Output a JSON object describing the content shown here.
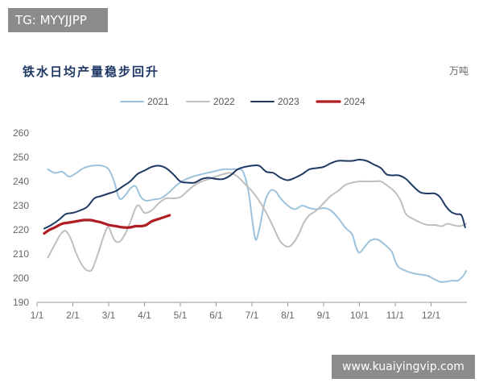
{
  "watermarks": {
    "top": "TG: MYYJJPP",
    "bottom": "www.kuaiyingvip.com"
  },
  "chart_data": {
    "type": "line",
    "title": "铁水日均产量稳步回升",
    "unit": "万吨",
    "ylim": [
      190,
      260
    ],
    "yticks": [
      190,
      200,
      210,
      220,
      230,
      240,
      250,
      260
    ],
    "xlim": [
      0,
      12
    ],
    "xticks": [
      {
        "label": "1/1",
        "x": 0
      },
      {
        "label": "2/1",
        "x": 1
      },
      {
        "label": "3/1",
        "x": 2
      },
      {
        "label": "4/1",
        "x": 3
      },
      {
        "label": "5/1",
        "x": 4
      },
      {
        "label": "6/1",
        "x": 5
      },
      {
        "label": "7/1",
        "x": 6
      },
      {
        "label": "8/1",
        "x": 7
      },
      {
        "label": "9/1",
        "x": 8
      },
      {
        "label": "10/1",
        "x": 9
      },
      {
        "label": "11/1",
        "x": 10
      },
      {
        "label": "12/1",
        "x": 11
      }
    ],
    "legend_position": "top",
    "grid": false,
    "series": [
      {
        "name": "2021",
        "color": "#9dc3dc",
        "width": 2,
        "points": [
          [
            0.3,
            245
          ],
          [
            0.5,
            243.5
          ],
          [
            0.7,
            244
          ],
          [
            0.9,
            242
          ],
          [
            1.1,
            243.5
          ],
          [
            1.3,
            245.5
          ],
          [
            1.55,
            246.5
          ],
          [
            1.8,
            246.5
          ],
          [
            2.0,
            245
          ],
          [
            2.15,
            240
          ],
          [
            2.3,
            233
          ],
          [
            2.45,
            234
          ],
          [
            2.6,
            237
          ],
          [
            2.75,
            238
          ],
          [
            2.9,
            233.5
          ],
          [
            3.05,
            232
          ],
          [
            3.25,
            232.5
          ],
          [
            3.45,
            233
          ],
          [
            3.65,
            235
          ],
          [
            3.9,
            238.5
          ],
          [
            4.1,
            240.5
          ],
          [
            4.35,
            242
          ],
          [
            4.6,
            243
          ],
          [
            4.9,
            244
          ],
          [
            5.2,
            245
          ],
          [
            5.4,
            245
          ],
          [
            5.6,
            245
          ],
          [
            5.75,
            244
          ],
          [
            5.9,
            236
          ],
          [
            6.0,
            225
          ],
          [
            6.1,
            216
          ],
          [
            6.2,
            220
          ],
          [
            6.35,
            231
          ],
          [
            6.5,
            236
          ],
          [
            6.65,
            236
          ],
          [
            6.8,
            233
          ],
          [
            7.0,
            230
          ],
          [
            7.2,
            228.5
          ],
          [
            7.4,
            230
          ],
          [
            7.6,
            229
          ],
          [
            7.8,
            228.5
          ],
          [
            8.0,
            229
          ],
          [
            8.2,
            228
          ],
          [
            8.4,
            225
          ],
          [
            8.6,
            221
          ],
          [
            8.8,
            218
          ],
          [
            8.9,
            213
          ],
          [
            9.0,
            210.5
          ],
          [
            9.15,
            213
          ],
          [
            9.3,
            215.5
          ],
          [
            9.5,
            216
          ],
          [
            9.7,
            214
          ],
          [
            9.9,
            211
          ],
          [
            10.0,
            207
          ],
          [
            10.1,
            204.5
          ],
          [
            10.3,
            203
          ],
          [
            10.5,
            202
          ],
          [
            10.7,
            201.5
          ],
          [
            10.9,
            201
          ],
          [
            11.1,
            199.5
          ],
          [
            11.25,
            198.5
          ],
          [
            11.4,
            198.5
          ],
          [
            11.6,
            199
          ],
          [
            11.75,
            199
          ],
          [
            11.9,
            201
          ],
          [
            11.98,
            203
          ]
        ]
      },
      {
        "name": "2022",
        "color": "#bfbfbf",
        "width": 2,
        "points": [
          [
            0.3,
            208.5
          ],
          [
            0.5,
            214
          ],
          [
            0.65,
            218
          ],
          [
            0.8,
            219.5
          ],
          [
            0.95,
            216
          ],
          [
            1.1,
            210
          ],
          [
            1.3,
            204.5
          ],
          [
            1.45,
            203
          ],
          [
            1.55,
            204
          ],
          [
            1.7,
            210
          ],
          [
            1.9,
            219
          ],
          [
            2.0,
            221
          ],
          [
            2.15,
            216
          ],
          [
            2.3,
            215
          ],
          [
            2.45,
            218
          ],
          [
            2.6,
            223
          ],
          [
            2.75,
            229
          ],
          [
            2.85,
            230
          ],
          [
            3.0,
            227
          ],
          [
            3.2,
            228
          ],
          [
            3.4,
            231
          ],
          [
            3.6,
            233
          ],
          [
            3.8,
            233
          ],
          [
            4.0,
            233.5
          ],
          [
            4.2,
            236
          ],
          [
            4.4,
            238.5
          ],
          [
            4.6,
            240
          ],
          [
            4.8,
            241
          ],
          [
            5.0,
            242
          ],
          [
            5.2,
            243
          ],
          [
            5.4,
            243.5
          ],
          [
            5.6,
            242
          ],
          [
            5.8,
            239
          ],
          [
            6.0,
            236
          ],
          [
            6.2,
            232
          ],
          [
            6.4,
            227
          ],
          [
            6.6,
            221
          ],
          [
            6.8,
            215
          ],
          [
            7.0,
            213
          ],
          [
            7.15,
            214.5
          ],
          [
            7.3,
            218
          ],
          [
            7.45,
            223
          ],
          [
            7.6,
            226
          ],
          [
            7.8,
            228
          ],
          [
            8.0,
            231
          ],
          [
            8.2,
            234
          ],
          [
            8.4,
            236
          ],
          [
            8.6,
            238.5
          ],
          [
            8.8,
            239.5
          ],
          [
            9.0,
            240
          ],
          [
            9.2,
            240
          ],
          [
            9.4,
            240
          ],
          [
            9.6,
            240
          ],
          [
            9.8,
            238
          ],
          [
            10.0,
            235.5
          ],
          [
            10.15,
            232
          ],
          [
            10.3,
            226.5
          ],
          [
            10.5,
            224.5
          ],
          [
            10.7,
            223
          ],
          [
            10.9,
            222
          ],
          [
            11.1,
            222
          ],
          [
            11.3,
            221.5
          ],
          [
            11.45,
            222.5
          ],
          [
            11.6,
            222
          ],
          [
            11.8,
            221.5
          ],
          [
            11.98,
            222.5
          ]
        ]
      },
      {
        "name": "2023",
        "color": "#1f3864",
        "width": 2,
        "points": [
          [
            0.2,
            220.5
          ],
          [
            0.4,
            222
          ],
          [
            0.6,
            224
          ],
          [
            0.8,
            226.5
          ],
          [
            1.0,
            227
          ],
          [
            1.2,
            228
          ],
          [
            1.4,
            229.5
          ],
          [
            1.6,
            233
          ],
          [
            1.8,
            234
          ],
          [
            2.0,
            235
          ],
          [
            2.2,
            236
          ],
          [
            2.4,
            238
          ],
          [
            2.6,
            240
          ],
          [
            2.8,
            243
          ],
          [
            3.0,
            244.5
          ],
          [
            3.2,
            246
          ],
          [
            3.4,
            246.5
          ],
          [
            3.6,
            245.5
          ],
          [
            3.8,
            243
          ],
          [
            4.0,
            240
          ],
          [
            4.2,
            239.5
          ],
          [
            4.4,
            239.5
          ],
          [
            4.6,
            241
          ],
          [
            4.8,
            241.5
          ],
          [
            5.0,
            241
          ],
          [
            5.2,
            241
          ],
          [
            5.4,
            242.5
          ],
          [
            5.6,
            245
          ],
          [
            5.8,
            246
          ],
          [
            6.0,
            246.5
          ],
          [
            6.2,
            246.5
          ],
          [
            6.4,
            244
          ],
          [
            6.6,
            243.5
          ],
          [
            6.8,
            241.5
          ],
          [
            7.0,
            240.5
          ],
          [
            7.2,
            241.5
          ],
          [
            7.4,
            243
          ],
          [
            7.6,
            245
          ],
          [
            7.8,
            245.5
          ],
          [
            8.0,
            246
          ],
          [
            8.2,
            247.5
          ],
          [
            8.4,
            248.5
          ],
          [
            8.6,
            248.5
          ],
          [
            8.8,
            248.5
          ],
          [
            9.0,
            249
          ],
          [
            9.2,
            248.5
          ],
          [
            9.4,
            247
          ],
          [
            9.6,
            245.5
          ],
          [
            9.75,
            243
          ],
          [
            9.9,
            242.5
          ],
          [
            10.1,
            242.5
          ],
          [
            10.3,
            241
          ],
          [
            10.5,
            238
          ],
          [
            10.7,
            235.5
          ],
          [
            10.9,
            235
          ],
          [
            11.1,
            235
          ],
          [
            11.25,
            233.5
          ],
          [
            11.4,
            230
          ],
          [
            11.55,
            227.5
          ],
          [
            11.7,
            226.5
          ],
          [
            11.85,
            226
          ],
          [
            11.95,
            221
          ]
        ]
      },
      {
        "name": "2024",
        "color": "#b01e23",
        "width": 3.2,
        "points": [
          [
            0.2,
            218.5
          ],
          [
            0.35,
            220
          ],
          [
            0.5,
            221
          ],
          [
            0.7,
            222.5
          ],
          [
            0.9,
            223
          ],
          [
            1.1,
            223.5
          ],
          [
            1.3,
            224
          ],
          [
            1.5,
            224
          ],
          [
            1.65,
            223.5
          ],
          [
            1.8,
            223
          ],
          [
            2.0,
            222
          ],
          [
            2.2,
            221.5
          ],
          [
            2.4,
            221
          ],
          [
            2.6,
            221
          ],
          [
            2.75,
            221.5
          ],
          [
            2.9,
            221.5
          ],
          [
            3.05,
            222
          ],
          [
            3.2,
            223.5
          ],
          [
            3.4,
            224.5
          ],
          [
            3.6,
            225.5
          ],
          [
            3.7,
            226
          ]
        ]
      }
    ]
  }
}
